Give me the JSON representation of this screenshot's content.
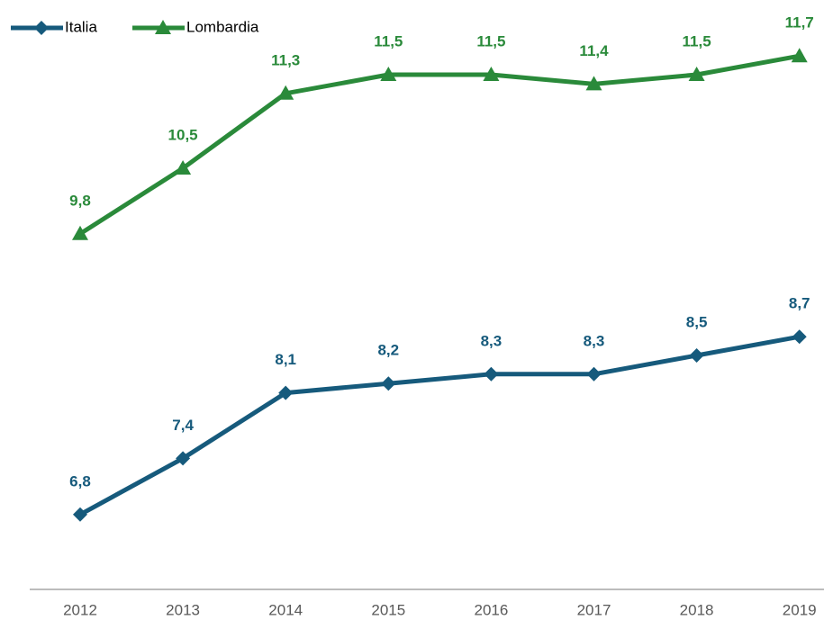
{
  "chart_data": {
    "type": "line",
    "categories": [
      "2012",
      "2013",
      "2014",
      "2015",
      "2016",
      "2017",
      "2018",
      "2019"
    ],
    "series": [
      {
        "name": "Italia",
        "color": "#165a7c",
        "marker": "diamond",
        "values": [
          6.8,
          7.4,
          8.1,
          8.2,
          8.3,
          8.3,
          8.5,
          8.7
        ],
        "value_labels": [
          "6,8",
          "7,4",
          "8,1",
          "8,2",
          "8,3",
          "8,3",
          "8,5",
          "8,7"
        ]
      },
      {
        "name": "Lombardia",
        "color": "#2a8a3a",
        "marker": "triangle",
        "values": [
          9.8,
          10.5,
          11.3,
          11.5,
          11.5,
          11.4,
          11.5,
          11.7
        ],
        "value_labels": [
          "9,8",
          "10,5",
          "11,3",
          "11,5",
          "11,5",
          "11,4",
          "11,5",
          "11,7"
        ]
      }
    ],
    "ylim": [
      6,
      12
    ],
    "legend": "top-left"
  }
}
